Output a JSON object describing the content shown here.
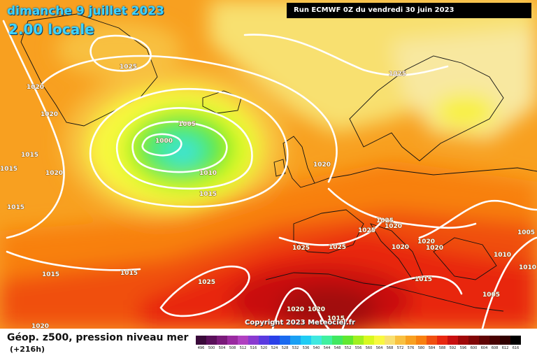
{
  "header": {
    "title": "dimanche 9 juillet 2023",
    "local_time": "2.00 locale",
    "run_info": "Run ECMWF 0Z du vendredi 30 juin 2023"
  },
  "copyright": "Copyright 2023 Meteociel.fr",
  "legend": {
    "title": "Géop. z500, pression niveau mer",
    "subtitle": "(+216h)",
    "scale": [
      {
        "label": "496",
        "color": "#3a0a3a"
      },
      {
        "label": "500",
        "color": "#5a105a"
      },
      {
        "label": "504",
        "color": "#7a1a7a"
      },
      {
        "label": "508",
        "color": "#9a2aa0"
      },
      {
        "label": "512",
        "color": "#b040c0"
      },
      {
        "label": "516",
        "color": "#8a3ad0"
      },
      {
        "label": "520",
        "color": "#5a3ae0"
      },
      {
        "label": "524",
        "color": "#2a40e8"
      },
      {
        "label": "528",
        "color": "#1a6af0"
      },
      {
        "label": "532",
        "color": "#1aa0f4"
      },
      {
        "label": "536",
        "color": "#20ccf4"
      },
      {
        "label": "540",
        "color": "#40e8e0"
      },
      {
        "label": "544",
        "color": "#40f0a0"
      },
      {
        "label": "548",
        "color": "#40e860"
      },
      {
        "label": "552",
        "color": "#60e830"
      },
      {
        "label": "556",
        "color": "#a0f020"
      },
      {
        "label": "560",
        "color": "#d8f820"
      },
      {
        "label": "564",
        "color": "#f8f840"
      },
      {
        "label": "568",
        "color": "#f8e070"
      },
      {
        "label": "572",
        "color": "#f8c040"
      },
      {
        "label": "576",
        "color": "#f8a020"
      },
      {
        "label": "580",
        "color": "#f88010"
      },
      {
        "label": "584",
        "color": "#f05010"
      },
      {
        "label": "588",
        "color": "#e82810"
      },
      {
        "label": "592",
        "color": "#c81010"
      },
      {
        "label": "596",
        "color": "#a00808"
      },
      {
        "label": "600",
        "color": "#800606"
      },
      {
        "label": "604",
        "color": "#600404"
      },
      {
        "label": "608",
        "color": "#480202"
      },
      {
        "label": "612",
        "color": "#300000"
      },
      {
        "label": "616",
        "color": "#000000"
      }
    ]
  },
  "isobar_labels": [
    {
      "text": "1025"
    },
    {
      "text": "1020"
    },
    {
      "text": "1020"
    },
    {
      "text": "1015"
    },
    {
      "text": "1015"
    },
    {
      "text": "1020"
    },
    {
      "text": "1015"
    },
    {
      "text": "1005"
    },
    {
      "text": "1000"
    },
    {
      "text": "1010"
    },
    {
      "text": "1015"
    },
    {
      "text": "1020"
    },
    {
      "text": "1025"
    },
    {
      "text": "1025"
    },
    {
      "text": "1020"
    },
    {
      "text": "1025"
    },
    {
      "text": "1025"
    },
    {
      "text": "1025"
    },
    {
      "text": "1020"
    },
    {
      "text": "1020"
    },
    {
      "text": "1020"
    },
    {
      "text": "1015"
    },
    {
      "text": "1015"
    },
    {
      "text": "1025"
    },
    {
      "text": "1020"
    },
    {
      "text": "1020"
    },
    {
      "text": "1015"
    },
    {
      "text": "1005"
    },
    {
      "text": "1005"
    },
    {
      "text": "1010"
    },
    {
      "text": "1010"
    },
    {
      "text": "1020"
    },
    {
      "text": "1015"
    }
  ]
}
